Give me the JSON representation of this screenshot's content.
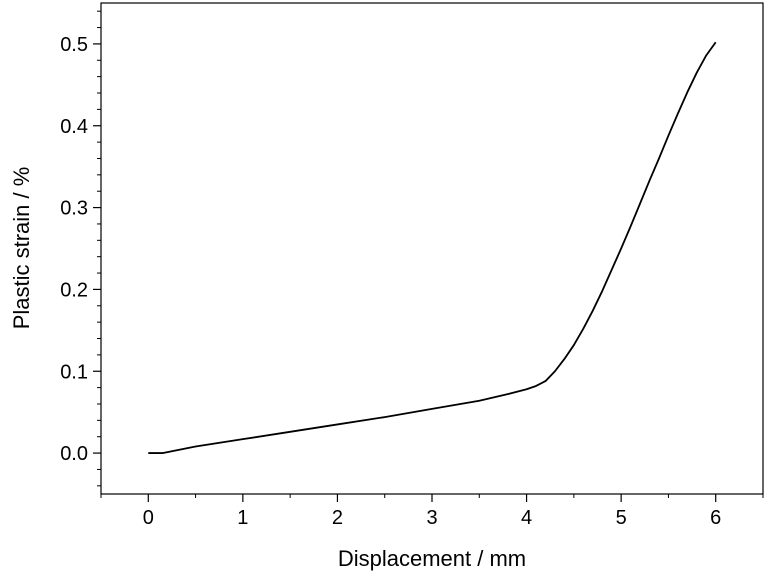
{
  "chart_data": {
    "type": "line",
    "title": "",
    "xlabel": "Displacement / mm",
    "ylabel": "Plastic strain / %",
    "xlim": [
      -0.5,
      6.5
    ],
    "ylim": [
      -0.05,
      0.55
    ],
    "xticks": [
      0,
      1,
      2,
      3,
      4,
      5,
      6
    ],
    "xtick_labels": [
      "0",
      "1",
      "2",
      "3",
      "4",
      "5",
      "6"
    ],
    "yticks": [
      0.0,
      0.1,
      0.2,
      0.3,
      0.4,
      0.5
    ],
    "ytick_labels": [
      "0.0",
      "0.1",
      "0.2",
      "0.3",
      "0.4",
      "0.5"
    ],
    "grid": false,
    "legend": "none",
    "line_color": "#000000",
    "series": [
      {
        "x": [
          0.0,
          0.15,
          0.5,
          1.0,
          1.5,
          2.0,
          2.5,
          3.0,
          3.5,
          3.8,
          4.0,
          4.1,
          4.2,
          4.3,
          4.4,
          4.5,
          4.6,
          4.7,
          4.8,
          4.9,
          5.0,
          5.1,
          5.2,
          5.3,
          5.4,
          5.5,
          5.6,
          5.7,
          5.8,
          5.9,
          6.0
        ],
        "y": [
          0.0,
          0.0,
          0.008,
          0.017,
          0.026,
          0.035,
          0.044,
          0.054,
          0.064,
          0.072,
          0.078,
          0.082,
          0.088,
          0.1,
          0.115,
          0.132,
          0.152,
          0.174,
          0.198,
          0.224,
          0.25,
          0.277,
          0.305,
          0.333,
          0.36,
          0.388,
          0.415,
          0.441,
          0.465,
          0.486,
          0.502
        ]
      }
    ]
  }
}
